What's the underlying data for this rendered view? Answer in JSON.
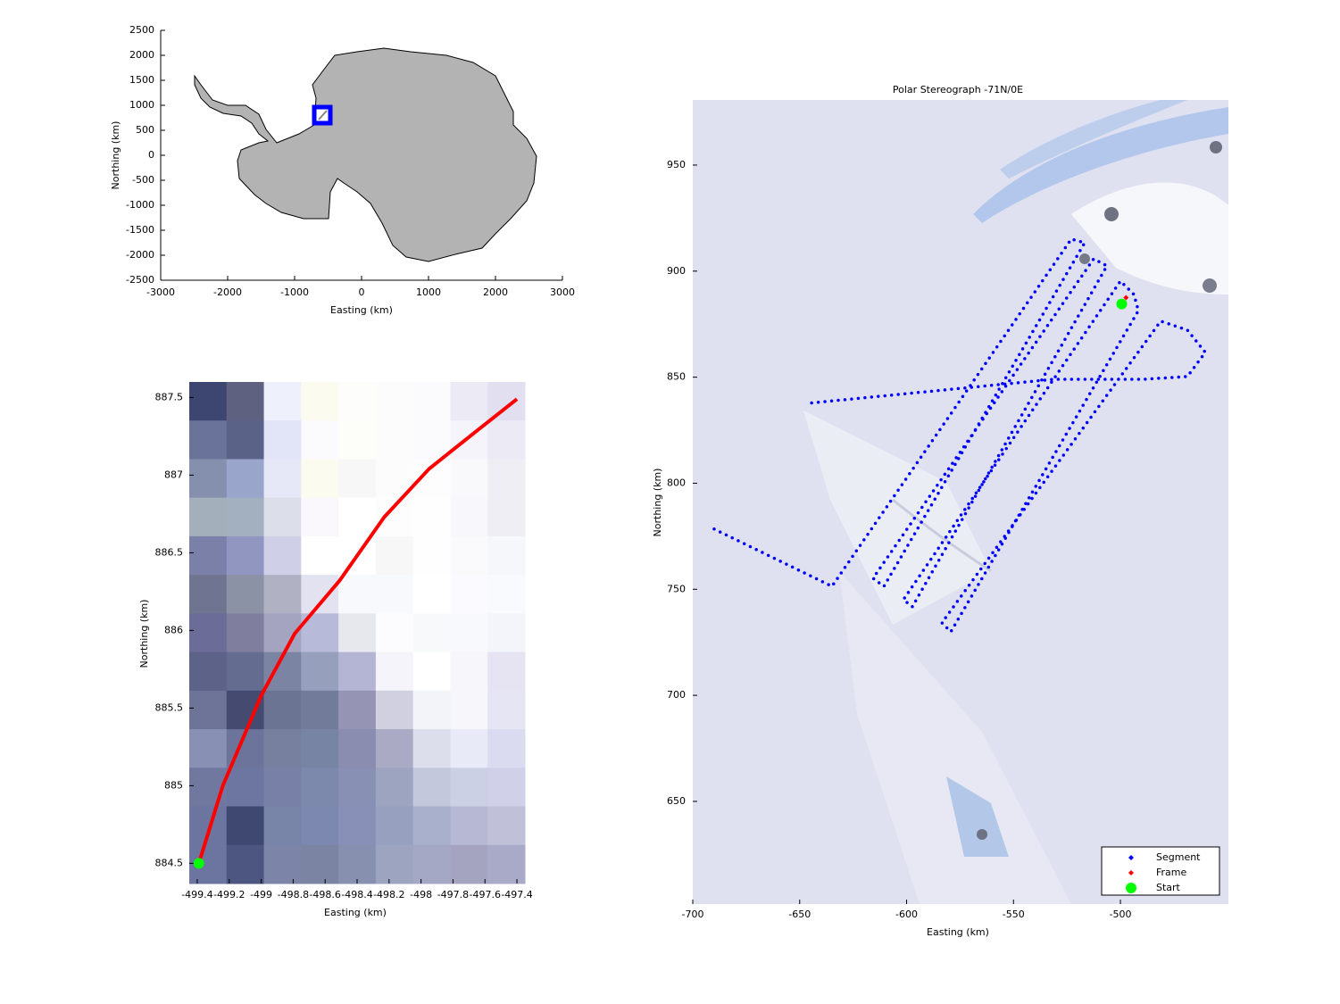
{
  "chart_data": [
    {
      "type": "map",
      "xlabel": "Easting (km)",
      "ylabel": "Northing (km)",
      "xlim": [
        -3000,
        3000
      ],
      "ylim": [
        -2500,
        2500
      ],
      "xticks": [
        -3000,
        -2000,
        -1000,
        0,
        1000,
        2000,
        3000
      ],
      "yticks": [
        -2500,
        -2000,
        -1500,
        -1000,
        -500,
        0,
        500,
        1000,
        1500,
        2000,
        2500
      ]
    },
    {
      "type": "line",
      "xlabel": "Easting (km)",
      "ylabel": "Northing (km)",
      "xlim": [
        -499.45,
        -497.35
      ],
      "ylim": [
        884.37,
        887.6
      ],
      "xticks": [
        -499.4,
        -499.2,
        -499,
        -498.8,
        -498.6,
        -498.4,
        -498.2,
        -498,
        -497.8,
        -497.6,
        -497.4
      ],
      "yticks": [
        884.5,
        885,
        885.5,
        886,
        886.5,
        887,
        887.5
      ],
      "series": [
        {
          "color": "#ff0000",
          "linestyle": "solid",
          "x": [
            -499.39,
            -499.24,
            -499.0,
            -498.79,
            -498.51,
            -498.23,
            -497.95,
            -497.67,
            -497.4
          ],
          "values": [
            884.5,
            885.0,
            885.58,
            885.98,
            886.32,
            886.73,
            887.04,
            887.27,
            887.49
          ]
        },
        {
          "color": "#00ff00",
          "marker": "o",
          "x": [
            -499.39
          ],
          "values": [
            884.5
          ]
        }
      ]
    },
    {
      "type": "line",
      "title": "Polar Stereograph -71N/0E",
      "xlabel": "Easting (km)",
      "ylabel": "Northing (km)",
      "xlim": [
        -700,
        -449.5
      ],
      "ylim": [
        601.6,
        980.7
      ],
      "xticks": [
        -700,
        -650,
        -600,
        -550,
        -500
      ],
      "yticks": [
        650,
        700,
        750,
        800,
        850,
        900,
        950
      ],
      "legend": "lower right",
      "series": [
        {
          "name": "Segment",
          "color": "#0000ff",
          "linestyle": "dotted",
          "marker": "diamond",
          "x": [
            -690.0,
            -634.9,
            -523.0,
            -516.7,
            -610.6,
            -615.7,
            -512.5,
            -506.3,
            -597.3,
            -601.5,
            -500.0,
            -493.7,
            -491.6,
            -579.3,
            -583.5,
            -481.2,
            -468.7,
            -460.3,
            -468.7,
            -489.6,
            -531.3,
            -646.1
          ],
          "values": [
            778.4,
            751.4,
            915.1,
            913.4,
            751.4,
            755.2,
            905.8,
            902.5,
            741.8,
            745.1,
            895.3,
            889.0,
            881.4,
            730.0,
            734.2,
            876.4,
            872.2,
            861.7,
            850.3,
            849.0,
            849.0,
            837.7
          ]
        },
        {
          "name": "Frame",
          "color": "#ff0000",
          "marker": "diamond",
          "x": [
            -497.4
          ],
          "values": [
            887.49
          ]
        },
        {
          "name": "Start",
          "color": "#00ff00",
          "marker": "o",
          "x": [
            -499.39
          ],
          "values": [
            884.5
          ]
        }
      ]
    }
  ]
}
